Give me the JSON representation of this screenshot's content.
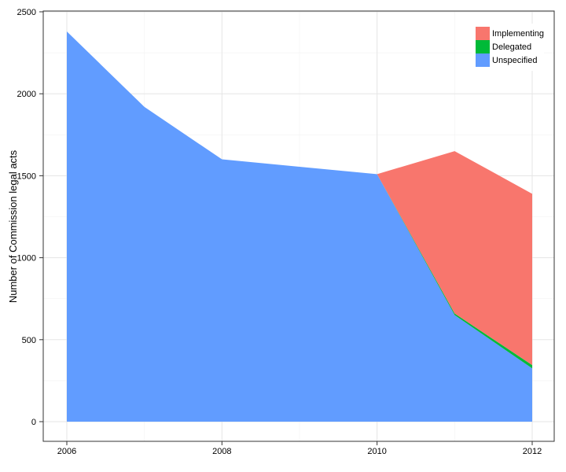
{
  "chart_data": {
    "type": "area",
    "stacked": true,
    "title": "",
    "xlabel": "",
    "ylabel": "Number of Commission legal acts",
    "x": [
      2006,
      2007,
      2008,
      2009,
      2010,
      2011,
      2012
    ],
    "xlim": [
      2006,
      2012
    ],
    "x_ticks": [
      2006,
      2008,
      2010,
      2012
    ],
    "ylim": [
      0,
      2500
    ],
    "y_ticks": [
      0,
      500,
      1000,
      1500,
      2000,
      2500
    ],
    "grid": true,
    "legend_position": "top-right",
    "series": [
      {
        "name": "Unspecified",
        "color": "#619CFF",
        "values": [
          2380,
          1920,
          1600,
          1555,
          1510,
          650,
          325
        ]
      },
      {
        "name": "Delegated",
        "color": "#00BA38",
        "values": [
          0,
          0,
          0,
          0,
          0,
          10,
          20
        ]
      },
      {
        "name": "Implementing",
        "color": "#F8766D",
        "values": [
          0,
          0,
          0,
          0,
          0,
          990,
          1045
        ]
      }
    ],
    "legend_order": [
      "Implementing",
      "Delegated",
      "Unspecified"
    ]
  }
}
